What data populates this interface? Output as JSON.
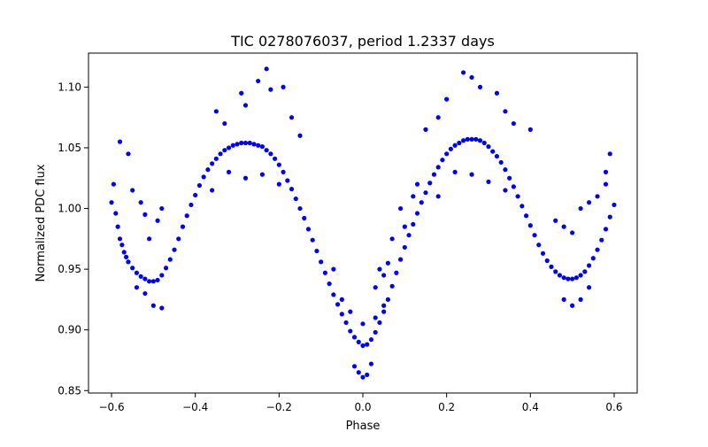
{
  "chart_data": {
    "type": "scatter",
    "title": "TIC 0278076037, period 1.2337 days",
    "xlabel": "Phase",
    "ylabel": "Normalized PDC flux",
    "xlim": [
      -0.655,
      0.655
    ],
    "ylim": [
      0.848,
      1.128
    ],
    "xticks": [
      -0.6,
      -0.4,
      -0.2,
      0.0,
      0.2,
      0.4,
      0.6
    ],
    "xtick_labels": [
      "−0.6",
      "−0.4",
      "−0.2",
      "0.0",
      "0.2",
      "0.4",
      "0.6"
    ],
    "yticks": [
      0.85,
      0.9,
      0.95,
      1.0,
      1.05,
      1.1
    ],
    "ytick_labels": [
      "0.85",
      "0.90",
      "0.95",
      "1.00",
      "1.05",
      "1.10"
    ],
    "grid": false,
    "legend": "none",
    "marker_color": "#0000ff",
    "series": [
      {
        "points": [
          [
            -0.6,
            1.005
          ],
          [
            -0.595,
            1.02
          ],
          [
            -0.59,
            0.996
          ],
          [
            -0.585,
            0.985
          ],
          [
            -0.58,
            0.975
          ],
          [
            -0.575,
            0.97
          ],
          [
            -0.57,
            0.964
          ],
          [
            -0.565,
            0.96
          ],
          [
            -0.56,
            0.956
          ],
          [
            -0.55,
            0.951
          ],
          [
            -0.54,
            0.947
          ],
          [
            -0.53,
            0.944
          ],
          [
            -0.52,
            0.942
          ],
          [
            -0.51,
            0.94
          ],
          [
            -0.5,
            0.94
          ],
          [
            -0.49,
            0.941
          ],
          [
            -0.48,
            0.945
          ],
          [
            -0.47,
            0.951
          ],
          [
            -0.46,
            0.958
          ],
          [
            -0.45,
            0.966
          ],
          [
            -0.44,
            0.975
          ],
          [
            -0.43,
            0.985
          ],
          [
            -0.42,
            0.994
          ],
          [
            -0.41,
            1.003
          ],
          [
            -0.4,
            1.011
          ],
          [
            -0.39,
            1.019
          ],
          [
            -0.38,
            1.026
          ],
          [
            -0.37,
            1.032
          ],
          [
            -0.36,
            1.037
          ],
          [
            -0.35,
            1.041
          ],
          [
            -0.34,
            1.045
          ],
          [
            -0.33,
            1.048
          ],
          [
            -0.32,
            1.05
          ],
          [
            -0.31,
            1.052
          ],
          [
            -0.3,
            1.053
          ],
          [
            -0.29,
            1.054
          ],
          [
            -0.28,
            1.054
          ],
          [
            -0.27,
            1.054
          ],
          [
            -0.26,
            1.053
          ],
          [
            -0.25,
            1.052
          ],
          [
            -0.24,
            1.051
          ],
          [
            -0.23,
            1.048
          ],
          [
            -0.22,
            1.045
          ],
          [
            -0.21,
            1.041
          ],
          [
            -0.2,
            1.036
          ],
          [
            -0.19,
            1.03
          ],
          [
            -0.18,
            1.023
          ],
          [
            -0.17,
            1.016
          ],
          [
            -0.16,
            1.008
          ],
          [
            -0.15,
            1.0
          ],
          [
            -0.14,
            0.992
          ],
          [
            -0.13,
            0.983
          ],
          [
            -0.12,
            0.974
          ],
          [
            -0.11,
            0.965
          ],
          [
            -0.1,
            0.956
          ],
          [
            -0.09,
            0.947
          ],
          [
            -0.08,
            0.938
          ],
          [
            -0.07,
            0.929
          ],
          [
            -0.06,
            0.921
          ],
          [
            -0.05,
            0.913
          ],
          [
            -0.04,
            0.906
          ],
          [
            -0.03,
            0.899
          ],
          [
            -0.02,
            0.894
          ],
          [
            -0.01,
            0.89
          ],
          [
            0.0,
            0.887
          ],
          [
            0.01,
            0.888
          ],
          [
            0.02,
            0.892
          ],
          [
            0.03,
            0.898
          ],
          [
            0.04,
            0.906
          ],
          [
            0.05,
            0.915
          ],
          [
            0.06,
            0.925
          ],
          [
            0.07,
            0.936
          ],
          [
            0.08,
            0.947
          ],
          [
            0.09,
            0.958
          ],
          [
            0.1,
            0.968
          ],
          [
            0.11,
            0.978
          ],
          [
            0.12,
            0.987
          ],
          [
            0.13,
            0.996
          ],
          [
            0.14,
            1.005
          ],
          [
            0.15,
            1.013
          ],
          [
            0.16,
            1.021
          ],
          [
            0.17,
            1.028
          ],
          [
            0.18,
            1.034
          ],
          [
            0.19,
            1.04
          ],
          [
            0.2,
            1.045
          ],
          [
            0.21,
            1.049
          ],
          [
            0.22,
            1.052
          ],
          [
            0.23,
            1.054
          ],
          [
            0.24,
            1.056
          ],
          [
            0.25,
            1.057
          ],
          [
            0.26,
            1.057
          ],
          [
            0.27,
            1.057
          ],
          [
            0.28,
            1.056
          ],
          [
            0.29,
            1.054
          ],
          [
            0.3,
            1.051
          ],
          [
            0.31,
            1.047
          ],
          [
            0.32,
            1.043
          ],
          [
            0.33,
            1.038
          ],
          [
            0.34,
            1.032
          ],
          [
            0.35,
            1.025
          ],
          [
            0.36,
            1.018
          ],
          [
            0.37,
            1.01
          ],
          [
            0.38,
            1.002
          ],
          [
            0.39,
            0.994
          ],
          [
            0.4,
            0.986
          ],
          [
            0.41,
            0.978
          ],
          [
            0.42,
            0.97
          ],
          [
            0.43,
            0.963
          ],
          [
            0.44,
            0.957
          ],
          [
            0.45,
            0.952
          ],
          [
            0.46,
            0.948
          ],
          [
            0.47,
            0.945
          ],
          [
            0.48,
            0.943
          ],
          [
            0.49,
            0.942
          ],
          [
            0.5,
            0.942
          ],
          [
            0.51,
            0.943
          ],
          [
            0.52,
            0.945
          ],
          [
            0.53,
            0.948
          ],
          [
            0.54,
            0.953
          ],
          [
            0.55,
            0.959
          ],
          [
            0.56,
            0.966
          ],
          [
            0.57,
            0.974
          ],
          [
            0.58,
            0.983
          ],
          [
            0.59,
            0.993
          ],
          [
            0.6,
            1.003
          ],
          [
            -0.28,
            1.085
          ],
          [
            -0.25,
            1.105
          ],
          [
            -0.23,
            1.115
          ],
          [
            -0.22,
            1.098
          ],
          [
            -0.29,
            1.095
          ],
          [
            -0.19,
            1.1
          ],
          [
            -0.35,
            1.08
          ],
          [
            -0.33,
            1.07
          ],
          [
            -0.17,
            1.075
          ],
          [
            -0.15,
            1.06
          ],
          [
            -0.32,
            1.03
          ],
          [
            -0.28,
            1.025
          ],
          [
            -0.24,
            1.028
          ],
          [
            -0.2,
            1.02
          ],
          [
            -0.36,
            1.015
          ],
          [
            0.24,
            1.112
          ],
          [
            0.26,
            1.108
          ],
          [
            0.28,
            1.1
          ],
          [
            0.32,
            1.095
          ],
          [
            0.2,
            1.09
          ],
          [
            0.34,
            1.08
          ],
          [
            0.36,
            1.07
          ],
          [
            0.18,
            1.075
          ],
          [
            0.15,
            1.065
          ],
          [
            0.4,
            1.065
          ],
          [
            0.22,
            1.03
          ],
          [
            0.26,
            1.028
          ],
          [
            0.3,
            1.022
          ],
          [
            0.34,
            1.015
          ],
          [
            0.18,
            1.01
          ],
          [
            -0.58,
            1.055
          ],
          [
            -0.56,
            1.045
          ],
          [
            -0.55,
            1.015
          ],
          [
            -0.53,
            1.005
          ],
          [
            -0.52,
            0.995
          ],
          [
            -0.51,
            0.975
          ],
          [
            -0.49,
            0.99
          ],
          [
            -0.48,
            1.0
          ],
          [
            -0.5,
            0.92
          ],
          [
            -0.48,
            0.918
          ],
          [
            -0.52,
            0.93
          ],
          [
            -0.54,
            0.935
          ],
          [
            0.5,
            0.92
          ],
          [
            0.48,
            0.925
          ],
          [
            0.52,
            0.925
          ],
          [
            0.54,
            0.935
          ],
          [
            0.52,
            1.0
          ],
          [
            0.54,
            1.005
          ],
          [
            0.56,
            1.01
          ],
          [
            0.58,
            1.03
          ],
          [
            0.59,
            1.045
          ],
          [
            0.58,
            1.02
          ],
          [
            0.5,
            0.98
          ],
          [
            0.48,
            0.985
          ],
          [
            0.46,
            0.99
          ],
          [
            0.0,
            0.861
          ],
          [
            -0.01,
            0.865
          ],
          [
            0.01,
            0.863
          ],
          [
            -0.02,
            0.87
          ],
          [
            0.02,
            0.872
          ],
          [
            0.0,
            0.905
          ],
          [
            0.03,
            0.91
          ],
          [
            -0.03,
            0.915
          ],
          [
            0.05,
            0.92
          ],
          [
            -0.05,
            0.925
          ],
          [
            0.05,
            0.945
          ],
          [
            0.06,
            0.955
          ],
          [
            0.04,
            0.95
          ],
          [
            0.03,
            0.935
          ],
          [
            -0.07,
            0.95
          ],
          [
            0.1,
            0.985
          ],
          [
            0.12,
            1.01
          ],
          [
            0.13,
            1.02
          ],
          [
            0.09,
            1.0
          ],
          [
            0.07,
            0.975
          ]
        ]
      }
    ]
  }
}
